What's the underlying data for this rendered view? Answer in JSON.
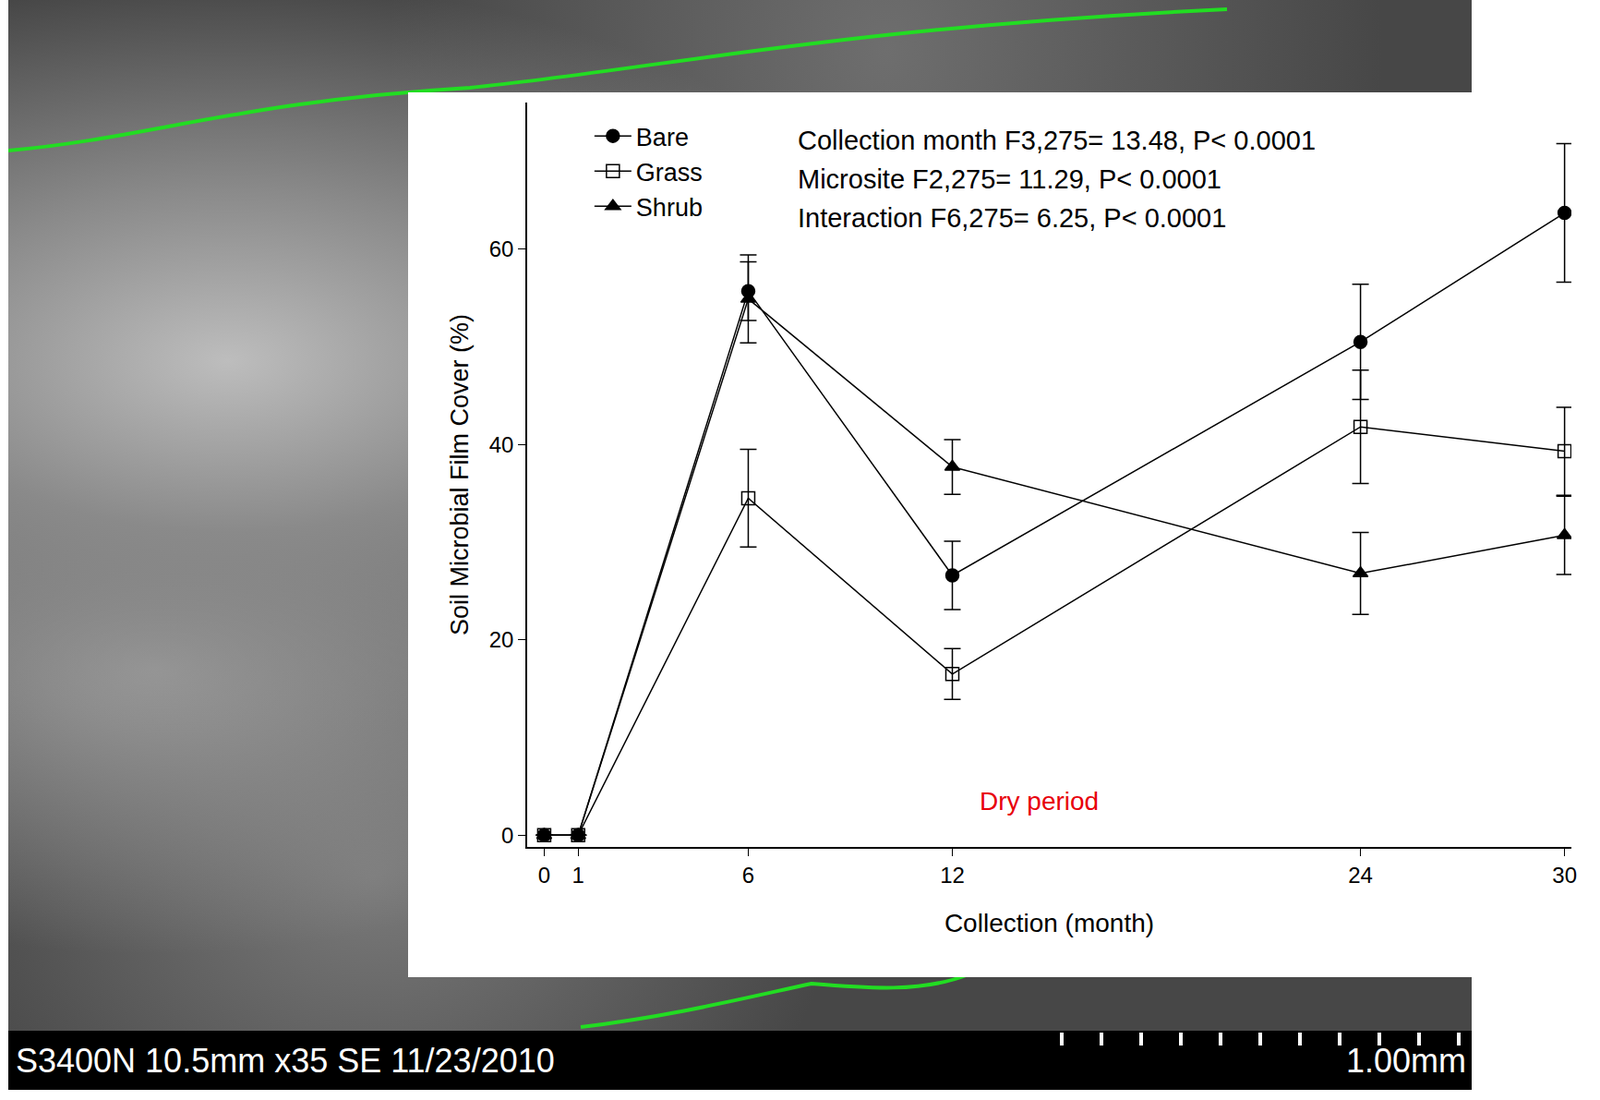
{
  "chart_data": {
    "type": "line",
    "x_label": "Collection (month)",
    "y_label": "Soil Microbial Film Cover (%)",
    "x": [
      0,
      1,
      6,
      12,
      24,
      30
    ],
    "series": [
      {
        "name": "Bare",
        "color": "#000000",
        "marker": "circle",
        "line_style": "solid",
        "values": [
          0,
          0,
          55.7,
          26.6,
          50.5,
          63.7
        ],
        "errors": [
          0,
          0,
          3.0,
          3.5,
          5.9,
          7.1
        ]
      },
      {
        "name": "Grass",
        "color": "#000000",
        "marker": "square-open",
        "line_style": "solid",
        "values": [
          0,
          0,
          34.5,
          16.5,
          41.8,
          39.3
        ],
        "errors": [
          0,
          0,
          5.0,
          2.6,
          5.8,
          4.5
        ]
      },
      {
        "name": "Shrub",
        "color": "#000000",
        "marker": "triangle-up",
        "line_style": "solid",
        "values": [
          0,
          0,
          54.9,
          37.7,
          26.8,
          30.7
        ],
        "errors": [
          0,
          0,
          4.5,
          2.8,
          4.2,
          4.0
        ]
      }
    ],
    "xlim": [
      -0.5,
      30.2
    ],
    "xticks": [
      0,
      1,
      6,
      12,
      24,
      30
    ],
    "ylim": [
      -1.2,
      75
    ],
    "yticks": [
      0,
      20,
      40,
      60
    ],
    "grid": false,
    "legend": "upper left",
    "annotations": [
      {
        "text": "Collection month F3,275= 13.48, P< 0.0001"
      },
      {
        "text": "Microsite F2,275= 11.29, P< 0.0001"
      },
      {
        "text": "Interaction F6,275= 6.25, P< 0.0001"
      },
      {
        "text": "Dry period",
        "color": "#e8000b"
      }
    ]
  },
  "micrograph_label": {
    "left": "S3400N 10.5mm x35 SE 11/23/2010",
    "right": "1.00mm"
  }
}
